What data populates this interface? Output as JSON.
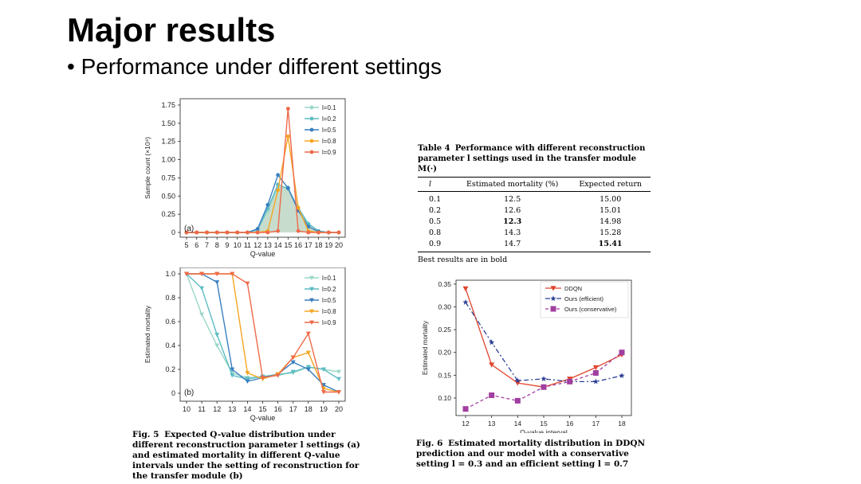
{
  "slide": {
    "title": "Major results",
    "bullet": "• Performance under different settings"
  },
  "colors": {
    "l01": "#9ad7c9",
    "l02": "#5dbcc4",
    "l05": "#3a7fc0",
    "l08": "#f5a623",
    "l09": "#ee6a4a",
    "ddqn": "#e0452c",
    "efficient": "#2c3f96",
    "conservative": "#a13fa0",
    "fill": "#b9d3c0"
  },
  "chart_data": [
    {
      "id": "fig5a",
      "type": "line",
      "panel_label": "(a)",
      "xlabel": "Q-value",
      "ylabel": "Sample count (×10⁴)",
      "x": [
        5,
        6,
        7,
        8,
        9,
        10,
        11,
        12,
        13,
        14,
        15,
        16,
        17,
        18,
        19,
        20
      ],
      "xticks": [
        "5",
        "6",
        "7",
        "8",
        "9",
        "10",
        "11",
        "12",
        "13",
        "14",
        "15",
        "16",
        "17",
        "18",
        "19",
        "20"
      ],
      "yticks": [
        0,
        0.25,
        0.5,
        0.75,
        1.0,
        1.25,
        1.5,
        1.75
      ],
      "ytick_labels": [
        "0",
        "0.25",
        "0.50",
        "0.75",
        "1.00",
        "1.25",
        "1.50",
        "1.75"
      ],
      "ylim": [
        0,
        1.75
      ],
      "legend": "top-right",
      "series": [
        {
          "name": "l=0.1",
          "color": "#9ad7c9",
          "marker": "o",
          "values": [
            0,
            0,
            0,
            0,
            0,
            0,
            0,
            0.03,
            0.3,
            0.62,
            0.62,
            0.32,
            0.12,
            0.02,
            0,
            0
          ]
        },
        {
          "name": "l=0.2",
          "color": "#5dbcc4",
          "marker": "o",
          "values": [
            0,
            0,
            0,
            0,
            0,
            0,
            0,
            0.04,
            0.33,
            0.66,
            0.6,
            0.34,
            0.12,
            0.02,
            0,
            0
          ]
        },
        {
          "name": "l=0.5",
          "color": "#3a7fc0",
          "marker": "o",
          "values": [
            0,
            0,
            0,
            0,
            0,
            0,
            0,
            0.05,
            0.38,
            0.79,
            0.61,
            0.3,
            0.08,
            0.01,
            0,
            0
          ]
        },
        {
          "name": "l=0.8",
          "color": "#f5a623",
          "marker": "o",
          "values": [
            0,
            0,
            0,
            0,
            0,
            0,
            0,
            0,
            0.02,
            0.58,
            1.32,
            0.34,
            0.02,
            0,
            0,
            0
          ]
        },
        {
          "name": "l=0.9",
          "color": "#ee6a4a",
          "marker": "o",
          "values": [
            0,
            0,
            0,
            0,
            0,
            0,
            0,
            0,
            0,
            0.02,
            1.7,
            0.02,
            0,
            0,
            0,
            0
          ]
        }
      ]
    },
    {
      "id": "fig5b",
      "type": "line",
      "panel_label": "(b)",
      "xlabel": "Q-value",
      "ylabel": "Estimated mortality",
      "x": [
        10,
        11,
        12,
        13,
        14,
        15,
        16,
        17,
        18,
        19,
        20
      ],
      "xticks": [
        "10",
        "11",
        "12",
        "13",
        "14",
        "15",
        "16",
        "17",
        "18",
        "19",
        "20"
      ],
      "yticks": [
        0,
        0.2,
        0.4,
        0.6,
        0.8,
        1.0
      ],
      "ytick_labels": [
        "0",
        "0.2",
        "0.4",
        "0.6",
        "0.8",
        "1.0"
      ],
      "ylim": [
        0,
        1.0
      ],
      "legend": "top-right",
      "series": [
        {
          "name": "l=0.1",
          "color": "#9ad7c9",
          "marker": "v",
          "values": [
            1.0,
            0.66,
            0.4,
            0.17,
            0.13,
            0.14,
            0.16,
            0.17,
            0.22,
            0.2,
            0.18
          ]
        },
        {
          "name": "l=0.2",
          "color": "#5dbcc4",
          "marker": "v",
          "values": [
            1.0,
            0.88,
            0.49,
            0.15,
            0.12,
            0.14,
            0.15,
            0.18,
            0.22,
            0.2,
            0.12
          ]
        },
        {
          "name": "l=0.5",
          "color": "#3a7fc0",
          "marker": "v",
          "values": [
            1.0,
            1.0,
            0.93,
            0.2,
            0.1,
            0.13,
            0.16,
            0.26,
            0.2,
            0.07,
            0.01
          ]
        },
        {
          "name": "l=0.8",
          "color": "#f5a623",
          "marker": "v",
          "values": [
            1.0,
            1.0,
            1.0,
            1.0,
            0.17,
            0.12,
            0.16,
            0.3,
            0.34,
            0.04,
            0.01
          ]
        },
        {
          "name": "l=0.9",
          "color": "#ee6a4a",
          "marker": "v",
          "values": [
            1.0,
            1.0,
            1.0,
            1.0,
            0.92,
            0.13,
            0.15,
            0.3,
            0.5,
            0.01,
            0.01
          ]
        }
      ]
    },
    {
      "id": "fig6",
      "type": "line",
      "xlabel": "Q-value interval",
      "ylabel": "Estimated mortality",
      "x": [
        12,
        13,
        14,
        15,
        16,
        17,
        18
      ],
      "xticks": [
        "12",
        "13",
        "14",
        "15",
        "16",
        "17",
        "18"
      ],
      "yticks": [
        0.1,
        0.15,
        0.2,
        0.25,
        0.3,
        0.35
      ],
      "ytick_labels": [
        "0.10",
        "0.15",
        "0.20",
        "0.25",
        "0.30",
        "0.35"
      ],
      "ylim": [
        0.065,
        0.355
      ],
      "legend": "top-right",
      "series": [
        {
          "name": "DDQN",
          "color": "#e0452c",
          "marker": "v",
          "dash": "",
          "values": [
            0.34,
            0.173,
            0.133,
            0.124,
            0.142,
            0.167,
            0.195
          ]
        },
        {
          "name": "Ours (efficient)",
          "color": "#2c3f96",
          "marker": "*",
          "dash": "6,3,2,3",
          "values": [
            0.31,
            0.222,
            0.138,
            0.142,
            0.136,
            0.136,
            0.149
          ]
        },
        {
          "name": "Ours (conservative)",
          "color": "#a13fa0",
          "marker": "s",
          "dash": "4,3",
          "values": [
            0.076,
            0.106,
            0.094,
            0.124,
            0.136,
            0.155,
            0.2
          ]
        }
      ]
    }
  ],
  "table4": {
    "caption_label": "Table 4",
    "caption_text": "Performance with different reconstruction parameter l settings used in the transfer module M(·)",
    "headers": [
      "l",
      "Estimated mortality (%)",
      "Expected return"
    ],
    "rows": [
      {
        "l": "0.1",
        "mortality": "12.5",
        "ret": "15.00",
        "bold_m": false,
        "bold_r": false
      },
      {
        "l": "0.2",
        "mortality": "12.6",
        "ret": "15.01",
        "bold_m": false,
        "bold_r": false
      },
      {
        "l": "0.5",
        "mortality": "12.3",
        "ret": "14.98",
        "bold_m": true,
        "bold_r": false
      },
      {
        "l": "0.8",
        "mortality": "14.3",
        "ret": "15.28",
        "bold_m": false,
        "bold_r": false
      },
      {
        "l": "0.9",
        "mortality": "14.7",
        "ret": "15.41",
        "bold_m": false,
        "bold_r": true
      }
    ],
    "note": "Best results are in bold"
  },
  "fig5_caption": {
    "label": "Fig. 5",
    "text": "Expected Q-value distribution under different reconstruction parameter l settings (a) and estimated mortality in different Q-value intervals under the setting of reconstruction for the transfer module (b)"
  },
  "fig6_caption": {
    "label": "Fig. 6",
    "text": "Estimated mortality distribution in DDQN prediction and our model with a conservative setting l = 0.3 and an efficient setting l = 0.7"
  }
}
